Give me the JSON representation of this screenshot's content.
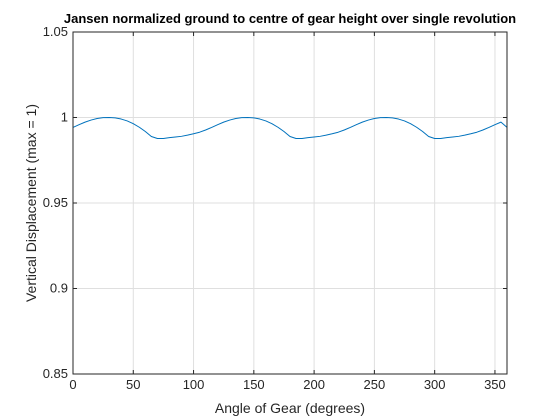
{
  "chart_data": {
    "type": "line",
    "title": "Jansen normalized ground to centre of gear height over single revolution",
    "xlabel": "Angle of Gear (degrees)",
    "ylabel": "Vertical Displacement (max = 1)",
    "xlim": [
      0,
      360
    ],
    "ylim": [
      0.85,
      1.05
    ],
    "xticks": [
      0,
      50,
      100,
      150,
      200,
      250,
      300,
      350
    ],
    "xtick_labels": [
      "0",
      "50",
      "100",
      "150",
      "200",
      "250",
      "300",
      "350"
    ],
    "yticks": [
      0.85,
      0.9,
      0.95,
      1,
      1.05
    ],
    "ytick_labels": [
      "0.85",
      "0.9",
      "0.95",
      "1",
      "1.05"
    ],
    "grid": true,
    "series": [
      {
        "color": "#0072bd",
        "x": [
          0,
          5,
          10,
          15,
          20,
          25,
          30,
          35,
          40,
          45,
          50,
          55,
          60,
          65,
          70,
          75,
          80,
          85,
          90,
          95,
          100,
          105,
          110,
          115,
          120,
          125,
          130,
          135,
          140,
          145,
          150,
          155,
          160,
          165,
          170,
          175,
          180,
          185,
          190,
          195,
          200,
          205,
          210,
          215,
          220,
          225,
          230,
          235,
          240,
          245,
          250,
          255,
          260,
          265,
          270,
          275,
          280,
          285,
          290,
          295,
          300,
          305,
          310,
          315,
          320,
          325,
          330,
          335,
          340,
          345,
          350,
          355,
          360
        ],
        "values": [
          0.9942,
          0.9958,
          0.9973,
          0.9985,
          0.9994,
          0.9999,
          1.0,
          0.9998,
          0.9991,
          0.998,
          0.9964,
          0.9943,
          0.9918,
          0.9889,
          0.9877,
          0.9877,
          0.9882,
          0.9886,
          0.989,
          0.9897,
          0.9905,
          0.9914,
          0.9927,
          0.9942,
          0.9958,
          0.9973,
          0.9985,
          0.9994,
          0.9999,
          1.0,
          0.9998,
          0.9991,
          0.998,
          0.9964,
          0.9943,
          0.9918,
          0.9889,
          0.9877,
          0.9877,
          0.9882,
          0.9886,
          0.989,
          0.9897,
          0.9905,
          0.9914,
          0.9927,
          0.9942,
          0.9958,
          0.9973,
          0.9985,
          0.9994,
          0.9999,
          1.0,
          0.9998,
          0.9991,
          0.998,
          0.9964,
          0.9943,
          0.9918,
          0.9889,
          0.9877,
          0.9877,
          0.9882,
          0.9886,
          0.989,
          0.9897,
          0.9905,
          0.9914,
          0.9927,
          0.9942,
          0.9958,
          0.9973,
          0.9942
        ]
      }
    ]
  }
}
